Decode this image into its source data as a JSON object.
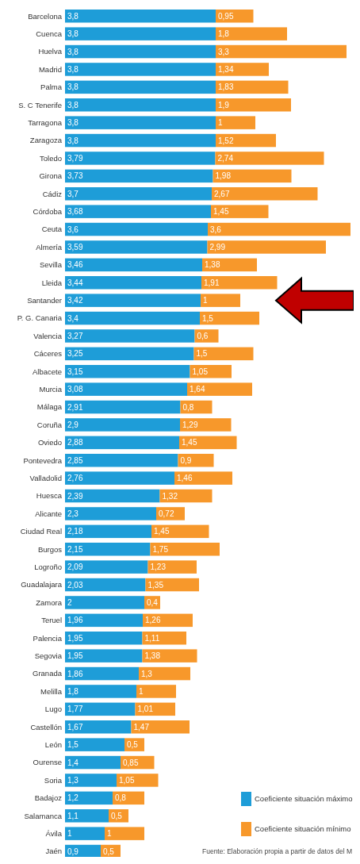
{
  "chart_data": {
    "type": "bar",
    "orientation": "horizontal",
    "stacked": true,
    "legend": "bottom right",
    "tick_labels": "y",
    "xlim": [
      0,
      7.2
    ],
    "categories": [
      "Barcelona",
      "Cuenca",
      "Huelva",
      "Madrid",
      "Palma",
      "S. C Tenerife",
      "Tarragona",
      "Zaragoza",
      "Toledo",
      "Girona",
      "Cádiz",
      "Córdoba",
      "Ceuta",
      "Almería",
      "Sevilla",
      "Lleida",
      "Santander",
      "P. G. Canaria",
      "Valencia",
      "Cáceres",
      "Albacete",
      "Murcia",
      "Málaga",
      "Coruña",
      "Oviedo",
      "Pontevedra",
      "Valladolid",
      "Huesca",
      "Alicante",
      "Ciudad Real",
      "Burgos",
      "Logroño",
      "Guadalajara",
      "Zamora",
      "Teruel",
      "Palencia",
      "Segovia",
      "Granada",
      "Melilla",
      "Lugo",
      "Castellón",
      "León",
      "Ourense",
      "Soria",
      "Badajoz",
      "Salamanca",
      "Ávila",
      "Jaén"
    ],
    "series": [
      {
        "name": "Coeficiente situación máximo",
        "color": "#1e9dd8",
        "values": [
          3.8,
          3.8,
          3.8,
          3.8,
          3.8,
          3.8,
          3.8,
          3.8,
          3.79,
          3.73,
          3.7,
          3.68,
          3.6,
          3.59,
          3.46,
          3.44,
          3.42,
          3.4,
          3.27,
          3.25,
          3.15,
          3.08,
          2.91,
          2.9,
          2.88,
          2.85,
          2.76,
          2.39,
          2.3,
          2.18,
          2.15,
          2.09,
          2.03,
          2,
          1.96,
          1.95,
          1.95,
          1.86,
          1.8,
          1.77,
          1.67,
          1.5,
          1.4,
          1.3,
          1.2,
          1.1,
          1,
          0.9
        ],
        "value_labels": [
          "3,8",
          "3,8",
          "3,8",
          "3,8",
          "3,8",
          "3,8",
          "3,8",
          "3,8",
          "3,79",
          "3,73",
          "3,7",
          "3,68",
          "3,6",
          "3,59",
          "3,46",
          "3,44",
          "3,42",
          "3,4",
          "3,27",
          "3,25",
          "3,15",
          "3,08",
          "2,91",
          "2,9",
          "2,88",
          "2,85",
          "2,76",
          "2,39",
          "2,3",
          "2,18",
          "2,15",
          "2,09",
          "2,03",
          "2",
          "1,96",
          "1,95",
          "1,95",
          "1,86",
          "1,8",
          "1,77",
          "1,67",
          "1,5",
          "1,4",
          "1,3",
          "1,2",
          "1,1",
          "1",
          "0,9"
        ]
      },
      {
        "name": "Coeficiente situación mínimo",
        "color": "#f7982b",
        "values": [
          0.95,
          1.8,
          3.3,
          1.34,
          1.83,
          1.9,
          1,
          1.52,
          2.74,
          1.98,
          2.67,
          1.45,
          3.6,
          2.99,
          1.38,
          1.91,
          1,
          1.5,
          0.6,
          1.5,
          1.05,
          1.64,
          0.8,
          1.29,
          1.45,
          0.9,
          1.46,
          1.32,
          0.72,
          1.45,
          1.75,
          1.23,
          1.35,
          0.4,
          1.26,
          1.11,
          1.38,
          1.3,
          1,
          1.01,
          1.47,
          0.5,
          0.85,
          1.05,
          0.8,
          0.5,
          1,
          0.5
        ],
        "value_labels": [
          "0,95",
          "1,8",
          "3,3",
          "1,34",
          "1,83",
          "1,9",
          "1",
          "1,52",
          "2,74",
          "1,98",
          "2,67",
          "1,45",
          "3,6",
          "2,99",
          "1,38",
          "1,91",
          "1",
          "1,5",
          "0,6",
          "1,5",
          "1,05",
          "1,64",
          "0,8",
          "1,29",
          "1,45",
          "0,9",
          "1,46",
          "1,32",
          "0,72",
          "1,45",
          "1,75",
          "1,23",
          "1,35",
          "0,4",
          "1,26",
          "1,11",
          "1,38",
          "1,3",
          "1",
          "1,01",
          "1,47",
          "0,5",
          "0,85",
          "1,05",
          "0,8",
          "0,5",
          "1",
          "0,5"
        ]
      }
    ],
    "annotations": [
      "Fuente: Elaboración propia a partir de datos del M"
    ]
  }
}
